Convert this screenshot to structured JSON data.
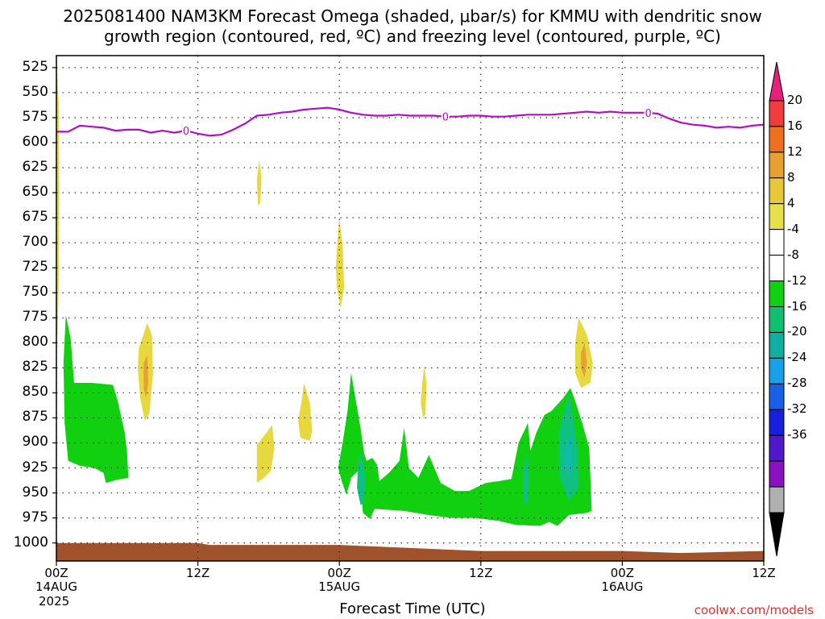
{
  "title_line1": "2025081400 NAM3KM Forecast Omega (shaded, μbar/s) for KMMU with dendritic snow",
  "title_line2": "growth region (contoured, red, ºC) and freezing level (contoured, purple, ºC)",
  "xlabel": "Forecast Time (UTC)",
  "credit": "coolwx.com/models",
  "chart_data": {
    "type": "heatmap",
    "ylim": [
      1018,
      513
    ],
    "y_ticks": [
      "525",
      "550",
      "575",
      "600",
      "625",
      "650",
      "675",
      "700",
      "725",
      "750",
      "775",
      "800",
      "825",
      "850",
      "875",
      "900",
      "925",
      "950",
      "975",
      "1000"
    ],
    "y_tick_values": [
      525,
      550,
      575,
      600,
      625,
      650,
      675,
      700,
      725,
      750,
      775,
      800,
      825,
      850,
      875,
      900,
      925,
      950,
      975,
      1000
    ],
    "xlim_hours": [
      0,
      60
    ],
    "x_ticks": [
      {
        "hour": 0,
        "line1": "00Z",
        "line2": "14AUG",
        "line3": "2025"
      },
      {
        "hour": 12,
        "line1": "12Z"
      },
      {
        "hour": 24,
        "line1": "00Z",
        "line2": "15AUG"
      },
      {
        "hour": 36,
        "line1": "12Z"
      },
      {
        "hour": 48,
        "line1": "00Z",
        "line2": "16AUG"
      },
      {
        "hour": 60,
        "line1": "12Z"
      }
    ],
    "grid": true,
    "colorbar": {
      "labels": [
        "20",
        "16",
        "12",
        "8",
        "4",
        "-4",
        "-8",
        "-12",
        "-16",
        "-20",
        "-24",
        "-28",
        "-32",
        "-36"
      ],
      "label_values": [
        20,
        16,
        12,
        8,
        4,
        -4,
        -8,
        -12,
        -16,
        -20,
        -24,
        -28,
        -32,
        -36
      ],
      "colors": [
        "#e8207a",
        "#f03c3c",
        "#f07020",
        "#e8a030",
        "#e8c838",
        "#e8e048",
        "#ffffff",
        "#ffffff",
        "#10d010",
        "#10c070",
        "#10b0a0",
        "#18a0e8",
        "#1860e8",
        "#1820e0",
        "#5018c8",
        "#8a10c0",
        "#b0b0b0",
        "#000000"
      ]
    },
    "freezing_level": {
      "color": "#b010c0",
      "label": "0",
      "points": [
        [
          0,
          589
        ],
        [
          1,
          589
        ],
        [
          2,
          583
        ],
        [
          3,
          584
        ],
        [
          4,
          585
        ],
        [
          5,
          588
        ],
        [
          6,
          587
        ],
        [
          7,
          587
        ],
        [
          8,
          590
        ],
        [
          9,
          588
        ],
        [
          10,
          590
        ],
        [
          11,
          588
        ],
        [
          12,
          591
        ],
        [
          13,
          593
        ],
        [
          14,
          592
        ],
        [
          15,
          587
        ],
        [
          16,
          581
        ],
        [
          17,
          573
        ],
        [
          18,
          572
        ],
        [
          19,
          570
        ],
        [
          20,
          569
        ],
        [
          21,
          567
        ],
        [
          22,
          566
        ],
        [
          23,
          565
        ],
        [
          24,
          567
        ],
        [
          25,
          570
        ],
        [
          26,
          572
        ],
        [
          27,
          573
        ],
        [
          28,
          573
        ],
        [
          29,
          572
        ],
        [
          30,
          573
        ],
        [
          31,
          573
        ],
        [
          32,
          573
        ],
        [
          33,
          574
        ],
        [
          34,
          574
        ],
        [
          35,
          573
        ],
        [
          36,
          573
        ],
        [
          37,
          574
        ],
        [
          38,
          574
        ],
        [
          39,
          573
        ],
        [
          40,
          572
        ],
        [
          41,
          572
        ],
        [
          42,
          572
        ],
        [
          43,
          571
        ],
        [
          44,
          570
        ],
        [
          45,
          569
        ],
        [
          46,
          570
        ],
        [
          47,
          569
        ],
        [
          48,
          570
        ],
        [
          49,
          570
        ],
        [
          50,
          570
        ],
        [
          51,
          571
        ],
        [
          52,
          576
        ],
        [
          53,
          580
        ],
        [
          54,
          582
        ],
        [
          55,
          583
        ],
        [
          56,
          585
        ],
        [
          57,
          584
        ],
        [
          58,
          585
        ],
        [
          59,
          583
        ],
        [
          60,
          582
        ]
      ],
      "label_hours": [
        11,
        33,
        50.2
      ]
    },
    "omega_areas": [
      {
        "value": 6,
        "points": [
          [
            0,
            513
          ],
          [
            0.2,
            560
          ],
          [
            0.25,
            650
          ],
          [
            0.2,
            740
          ],
          [
            0.1,
            790
          ],
          [
            0,
            800
          ]
        ]
      },
      {
        "value": 6,
        "points": [
          [
            7.3,
            795
          ],
          [
            7.7,
            780
          ],
          [
            8.1,
            792
          ],
          [
            8.2,
            830
          ],
          [
            7.9,
            870
          ],
          [
            7.5,
            878
          ],
          [
            7.1,
            855
          ],
          [
            6.9,
            825
          ],
          [
            7.0,
            805
          ]
        ]
      },
      {
        "value": 10,
        "points": [
          [
            7.4,
            820
          ],
          [
            7.7,
            812
          ],
          [
            7.8,
            840
          ],
          [
            7.6,
            855
          ],
          [
            7.4,
            845
          ]
        ]
      },
      {
        "value": 6,
        "points": [
          [
            17.0,
            638
          ],
          [
            17.2,
            617
          ],
          [
            17.4,
            635
          ],
          [
            17.3,
            660
          ],
          [
            17.1,
            663
          ]
        ]
      },
      {
        "value": 6,
        "points": [
          [
            17.0,
            902
          ],
          [
            17.8,
            890
          ],
          [
            18.3,
            882
          ],
          [
            18.5,
            905
          ],
          [
            18.2,
            928
          ],
          [
            17.6,
            935
          ],
          [
            17.0,
            940
          ]
        ]
      },
      {
        "value": 6,
        "points": [
          [
            20.8,
            858
          ],
          [
            21.0,
            840
          ],
          [
            21.5,
            860
          ],
          [
            21.7,
            888
          ],
          [
            21.5,
            898
          ],
          [
            20.7,
            895
          ],
          [
            20.5,
            878
          ]
        ]
      },
      {
        "value": 6,
        "points": [
          [
            23.8,
            705
          ],
          [
            24.0,
            675
          ],
          [
            24.3,
            705
          ],
          [
            24.4,
            745
          ],
          [
            24.1,
            765
          ],
          [
            23.8,
            745
          ],
          [
            23.7,
            725
          ]
        ]
      },
      {
        "value": 6,
        "points": [
          [
            31.0,
            845
          ],
          [
            31.2,
            822
          ],
          [
            31.4,
            842
          ],
          [
            31.3,
            872
          ],
          [
            31.1,
            875
          ],
          [
            30.9,
            860
          ]
        ]
      },
      {
        "value": 6,
        "points": [
          [
            44.0,
            800
          ],
          [
            44.3,
            775
          ],
          [
            45.0,
            792
          ],
          [
            45.5,
            820
          ],
          [
            45.3,
            840
          ],
          [
            44.5,
            845
          ],
          [
            44.0,
            830
          ]
        ]
      },
      {
        "value": 10,
        "points": [
          [
            44.5,
            810
          ],
          [
            44.8,
            800
          ],
          [
            45.0,
            820
          ],
          [
            44.8,
            835
          ],
          [
            44.5,
            825
          ]
        ]
      },
      {
        "value": -6,
        "points": [
          [
            0.8,
            772
          ],
          [
            1.2,
            795
          ],
          [
            1.5,
            840
          ],
          [
            3.0,
            840
          ],
          [
            4.8,
            842
          ],
          [
            5.2,
            858
          ],
          [
            5.8,
            890
          ],
          [
            6.0,
            910
          ],
          [
            6.1,
            935
          ],
          [
            5.1,
            937
          ],
          [
            4.2,
            940
          ],
          [
            4.0,
            930
          ],
          [
            3.2,
            925
          ],
          [
            2.0,
            923
          ],
          [
            1.0,
            918
          ],
          [
            0.7,
            880
          ],
          [
            0.6,
            820
          ]
        ]
      },
      {
        "value": -6,
        "points": [
          [
            25.0,
            830
          ],
          [
            25.8,
            885
          ],
          [
            26.1,
            910
          ],
          [
            26.3,
            918
          ],
          [
            26.8,
            915
          ],
          [
            27.2,
            922
          ],
          [
            27.4,
            938
          ],
          [
            28.2,
            930
          ],
          [
            29.1,
            918
          ],
          [
            29.5,
            885
          ],
          [
            29.9,
            925
          ],
          [
            30.7,
            935
          ],
          [
            31.6,
            912
          ],
          [
            32.6,
            940
          ],
          [
            33.8,
            948
          ],
          [
            35.0,
            948
          ],
          [
            36.4,
            940
          ],
          [
            37.6,
            938
          ],
          [
            38.6,
            936
          ],
          [
            39.2,
            900
          ],
          [
            40.0,
            880
          ],
          [
            40.2,
            908
          ],
          [
            40.7,
            890
          ],
          [
            41.4,
            872
          ],
          [
            42.0,
            868
          ],
          [
            43.0,
            855
          ],
          [
            43.6,
            845
          ],
          [
            44.0,
            858
          ],
          [
            44.6,
            880
          ],
          [
            45.2,
            905
          ],
          [
            45.4,
            968
          ],
          [
            45.0,
            970
          ],
          [
            43.5,
            972
          ],
          [
            42.5,
            983
          ],
          [
            41.8,
            979
          ],
          [
            41.0,
            983
          ],
          [
            39.0,
            982
          ],
          [
            37.5,
            978
          ],
          [
            35.5,
            975
          ],
          [
            33.5,
            975
          ],
          [
            31.5,
            972
          ],
          [
            29.5,
            968
          ],
          [
            27.0,
            966
          ],
          [
            26.6,
            976
          ],
          [
            26.0,
            970
          ],
          [
            25.8,
            945
          ],
          [
            25.6,
            928
          ],
          [
            25.0,
            935
          ],
          [
            24.6,
            952
          ],
          [
            24.2,
            938
          ],
          [
            23.9,
            925
          ],
          [
            24.3,
            898
          ],
          [
            24.7,
            868
          ]
        ]
      },
      {
        "value": -10,
        "points": [
          [
            25.6,
            918
          ],
          [
            25.9,
            910
          ],
          [
            26.2,
            935
          ],
          [
            26.1,
            960
          ],
          [
            25.8,
            962
          ],
          [
            25.5,
            945
          ]
        ]
      },
      {
        "value": -10,
        "points": [
          [
            39.6,
            930
          ],
          [
            39.9,
            910
          ],
          [
            40.1,
            935
          ],
          [
            40.0,
            960
          ],
          [
            39.6,
            960
          ]
        ]
      },
      {
        "value": -10,
        "points": [
          [
            42.6,
            890
          ],
          [
            43.5,
            850
          ],
          [
            44.2,
            905
          ],
          [
            44.3,
            945
          ],
          [
            43.5,
            958
          ],
          [
            42.7,
            935
          ]
        ]
      },
      {
        "value": -14,
        "points": [
          [
            43.2,
            905
          ],
          [
            43.6,
            890
          ],
          [
            43.8,
            920
          ],
          [
            43.5,
            935
          ],
          [
            43.1,
            925
          ]
        ]
      }
    ],
    "ground": {
      "color": "#a0522d",
      "points": [
        [
          0,
          1000
        ],
        [
          12,
          1000
        ],
        [
          13,
          1002
        ],
        [
          24,
          1002
        ],
        [
          30,
          1005
        ],
        [
          36,
          1008
        ],
        [
          48,
          1008
        ],
        [
          53,
          1010
        ],
        [
          60,
          1008
        ]
      ]
    }
  }
}
